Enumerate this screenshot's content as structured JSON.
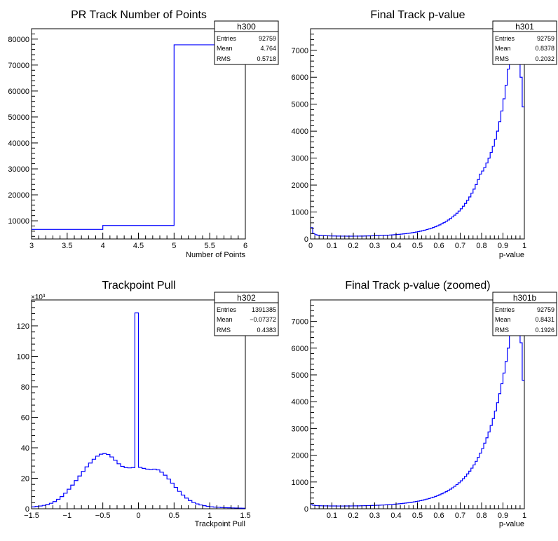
{
  "colors": {
    "line": "#0000ff",
    "axis": "#000000",
    "background": "#ffffff"
  },
  "chart_data": [
    {
      "name": "h300",
      "type": "histogram",
      "title": "PR Track Number of Points",
      "xlabel": "Number of Points",
      "ylabel": "",
      "xlim": [
        3,
        6
      ],
      "ylim": [
        3000,
        84000
      ],
      "xticks": [
        3,
        3.5,
        4,
        4.5,
        5,
        5.5,
        6
      ],
      "xtick_labels": [
        "3",
        "3.5",
        "4",
        "4.5",
        "5",
        "5.5",
        "6"
      ],
      "yticks": [
        10000,
        20000,
        30000,
        40000,
        50000,
        60000,
        70000,
        80000
      ],
      "ytick_labels": [
        "10000",
        "20000",
        "30000",
        "40000",
        "50000",
        "60000",
        "70000",
        "80000"
      ],
      "ymultiplier": "",
      "bin_edges": [
        3,
        4,
        5,
        6
      ],
      "values": [
        6700,
        8200,
        77800
      ],
      "stats": {
        "box_title": "h300",
        "entries_label": "Entries",
        "entries": "92759",
        "mean_label": "Mean",
        "mean": "4.764",
        "rms_label": "RMS",
        "rms": "0.5718"
      }
    },
    {
      "name": "h301",
      "type": "histogram",
      "title": "Final Track p-value",
      "xlabel": "p-value",
      "ylabel": "",
      "xlim": [
        0,
        1
      ],
      "ylim": [
        0,
        7800
      ],
      "xticks": [
        0,
        0.1,
        0.2,
        0.3,
        0.4,
        0.5,
        0.6,
        0.7,
        0.8,
        0.9,
        1
      ],
      "xtick_labels": [
        "0",
        "0.1",
        "0.2",
        "0.3",
        "0.4",
        "0.5",
        "0.6",
        "0.7",
        "0.8",
        "0.9",
        "1"
      ],
      "yticks": [
        0,
        1000,
        2000,
        3000,
        4000,
        5000,
        6000,
        7000
      ],
      "ytick_labels": [
        "0",
        "1000",
        "2000",
        "3000",
        "4000",
        "5000",
        "6000",
        "7000"
      ],
      "ymultiplier": "",
      "bin_edges": [
        0,
        0.01,
        0.02,
        0.03,
        0.04,
        0.05,
        0.06,
        0.07,
        0.08,
        0.09,
        0.1,
        0.11,
        0.12,
        0.13,
        0.14,
        0.15,
        0.16,
        0.17,
        0.18,
        0.19,
        0.2,
        0.21,
        0.22,
        0.23,
        0.24,
        0.25,
        0.26,
        0.27,
        0.28,
        0.29,
        0.3,
        0.31,
        0.32,
        0.33,
        0.34,
        0.35,
        0.36,
        0.37,
        0.38,
        0.39,
        0.4,
        0.41,
        0.42,
        0.43,
        0.44,
        0.45,
        0.46,
        0.47,
        0.48,
        0.49,
        0.5,
        0.51,
        0.52,
        0.53,
        0.54,
        0.55,
        0.56,
        0.57,
        0.58,
        0.59,
        0.6,
        0.61,
        0.62,
        0.63,
        0.64,
        0.65,
        0.66,
        0.67,
        0.68,
        0.69,
        0.7,
        0.71,
        0.72,
        0.73,
        0.74,
        0.75,
        0.76,
        0.77,
        0.78,
        0.79,
        0.8,
        0.81,
        0.82,
        0.83,
        0.84,
        0.85,
        0.86,
        0.87,
        0.88,
        0.89,
        0.9,
        0.91,
        0.92,
        0.93,
        0.94,
        0.95,
        0.96,
        0.97,
        0.98,
        0.99,
        1
      ],
      "values": [
        420,
        200,
        160,
        140,
        130,
        125,
        120,
        118,
        115,
        112,
        110,
        110,
        108,
        107,
        106,
        105,
        105,
        104,
        104,
        104,
        105,
        105,
        106,
        107,
        108,
        110,
        112,
        114,
        116,
        118,
        120,
        123,
        126,
        129,
        133,
        137,
        142,
        147,
        153,
        159,
        165,
        172,
        180,
        188,
        197,
        207,
        218,
        230,
        243,
        257,
        272,
        289,
        307,
        327,
        349,
        372,
        397,
        425,
        455,
        488,
        524,
        563,
        606,
        652,
        703,
        758,
        818,
        884,
        956,
        1035,
        1121,
        1216,
        1320,
        1434,
        1560,
        1698,
        1850,
        2018,
        2203,
        2407,
        2520,
        2650,
        2820,
        3000,
        3210,
        3440,
        3700,
        4000,
        4350,
        4750,
        5200,
        5700,
        6300,
        6950,
        7600,
        7700,
        7650,
        7300,
        6000,
        4900
      ],
      "stats": {
        "box_title": "h301",
        "entries_label": "Entries",
        "entries": "92759",
        "mean_label": "Mean",
        "mean": "0.8378",
        "rms_label": "RMS",
        "rms": "0.2032"
      }
    },
    {
      "name": "h302",
      "type": "histogram",
      "title": "Trackpoint Pull",
      "xlabel": "Trackpoint Pull",
      "ylabel": "",
      "xlim": [
        -1.5,
        1.5
      ],
      "ylim": [
        0,
        137000
      ],
      "xticks": [
        -1.5,
        -1,
        -0.5,
        0,
        0.5,
        1,
        1.5
      ],
      "xtick_labels": [
        "−1.5",
        "−1",
        "−0.5",
        "0",
        "0.5",
        "1",
        "1.5"
      ],
      "yticks": [
        0,
        20000,
        40000,
        60000,
        80000,
        100000,
        120000
      ],
      "ytick_labels": [
        "0",
        "20",
        "40",
        "60",
        "80",
        "100",
        "120"
      ],
      "ymultiplier": "×10³",
      "bin_edges": [
        -1.5,
        -1.45,
        -1.4,
        -1.35,
        -1.3,
        -1.25,
        -1.2,
        -1.15,
        -1.1,
        -1.05,
        -1,
        -0.95,
        -0.9,
        -0.85,
        -0.8,
        -0.75,
        -0.7,
        -0.65,
        -0.6,
        -0.55,
        -0.5,
        -0.45,
        -0.4,
        -0.35,
        -0.3,
        -0.25,
        -0.2,
        -0.15,
        -0.1,
        -0.05,
        0,
        0.05,
        0.1,
        0.15,
        0.2,
        0.25,
        0.3,
        0.35,
        0.4,
        0.45,
        0.5,
        0.55,
        0.6,
        0.65,
        0.7,
        0.75,
        0.8,
        0.85,
        0.9,
        0.95,
        1,
        1.05,
        1.1,
        1.15,
        1.2,
        1.25,
        1.3,
        1.35,
        1.4,
        1.45,
        1.5
      ],
      "values": [
        1200,
        1500,
        1800,
        2200,
        2800,
        3600,
        4700,
        6200,
        8000,
        10200,
        12800,
        15500,
        18500,
        21500,
        24500,
        27500,
        30000,
        32500,
        34500,
        35800,
        36200,
        35600,
        34000,
        31800,
        29500,
        27800,
        27000,
        26800,
        27000,
        128500,
        27200,
        26500,
        26000,
        25800,
        26000,
        25500,
        24000,
        22000,
        19500,
        16800,
        14000,
        11400,
        9000,
        7000,
        5400,
        4100,
        3200,
        2500,
        2000,
        1600,
        1300,
        1100,
        950,
        820,
        700,
        620,
        550,
        480,
        420,
        380
      ],
      "stats": {
        "box_title": "h302",
        "entries_label": "Entries",
        "entries": "1391385",
        "mean_label": "Mean",
        "mean": "−0.07372",
        "rms_label": "RMS",
        "rms": "0.4383"
      }
    },
    {
      "name": "h301b",
      "type": "histogram",
      "title": "Final Track p-value (zoomed)",
      "xlabel": "p-value",
      "ylabel": "",
      "xlim": [
        0,
        1
      ],
      "ylim": [
        0,
        7800
      ],
      "xticks": [
        0.1,
        0.2,
        0.3,
        0.4,
        0.5,
        0.6,
        0.7,
        0.8,
        0.9,
        1
      ],
      "xtick_labels": [
        "0.1",
        "0.2",
        "0.3",
        "0.4",
        "0.5",
        "0.6",
        "0.7",
        "0.8",
        "0.9",
        "1"
      ],
      "yticks": [
        0,
        1000,
        2000,
        3000,
        4000,
        5000,
        6000,
        7000
      ],
      "ytick_labels": [
        "0",
        "1000",
        "2000",
        "3000",
        "4000",
        "5000",
        "6000",
        "7000"
      ],
      "ymultiplier": "",
      "bin_edges": [
        0,
        0.01,
        0.02,
        0.03,
        0.04,
        0.05,
        0.06,
        0.07,
        0.08,
        0.09,
        0.1,
        0.11,
        0.12,
        0.13,
        0.14,
        0.15,
        0.16,
        0.17,
        0.18,
        0.19,
        0.2,
        0.21,
        0.22,
        0.23,
        0.24,
        0.25,
        0.26,
        0.27,
        0.28,
        0.29,
        0.3,
        0.31,
        0.32,
        0.33,
        0.34,
        0.35,
        0.36,
        0.37,
        0.38,
        0.39,
        0.4,
        0.41,
        0.42,
        0.43,
        0.44,
        0.45,
        0.46,
        0.47,
        0.48,
        0.49,
        0.5,
        0.51,
        0.52,
        0.53,
        0.54,
        0.55,
        0.56,
        0.57,
        0.58,
        0.59,
        0.6,
        0.61,
        0.62,
        0.63,
        0.64,
        0.65,
        0.66,
        0.67,
        0.68,
        0.69,
        0.7,
        0.71,
        0.72,
        0.73,
        0.74,
        0.75,
        0.76,
        0.77,
        0.78,
        0.79,
        0.8,
        0.81,
        0.82,
        0.83,
        0.84,
        0.85,
        0.86,
        0.87,
        0.88,
        0.89,
        0.9,
        0.91,
        0.92,
        0.93,
        0.94,
        0.95,
        0.96,
        0.97,
        0.98,
        0.99,
        1
      ],
      "values": [
        150,
        130,
        120,
        115,
        112,
        110,
        108,
        107,
        106,
        105,
        104,
        104,
        103,
        103,
        103,
        103,
        104,
        104,
        105,
        106,
        107,
        108,
        109,
        111,
        113,
        115,
        117,
        119,
        122,
        125,
        128,
        131,
        135,
        139,
        143,
        148,
        153,
        159,
        165,
        171,
        178,
        186,
        194,
        203,
        212,
        222,
        233,
        245,
        258,
        272,
        287,
        303,
        321,
        340,
        361,
        383,
        407,
        433,
        461,
        491,
        524,
        559,
        597,
        638,
        683,
        731,
        784,
        841,
        903,
        970,
        1043,
        1122,
        1208,
        1302,
        1404,
        1516,
        1638,
        1772,
        1918,
        2078,
        2250,
        2450,
        2650,
        2870,
        3110,
        3370,
        3650,
        3960,
        4300,
        4670,
        5070,
        5500,
        6000,
        6550,
        7150,
        7700,
        7700,
        7400,
        6200,
        4800
      ],
      "stats": {
        "box_title": "h301b",
        "entries_label": "Entries",
        "entries": "92759",
        "mean_label": "Mean",
        "mean": "0.8431",
        "rms_label": "RMS",
        "rms": "0.1926"
      }
    }
  ]
}
